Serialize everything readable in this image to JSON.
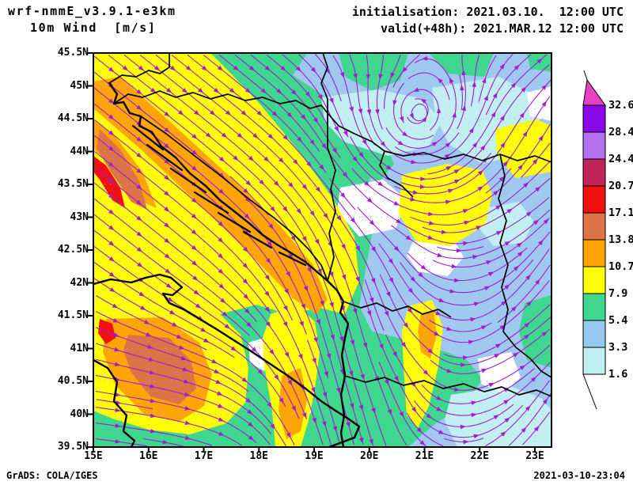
{
  "header": {
    "model_title": "wrf-nmmE_v3.9.1-e3km",
    "variable_title": "10m Wind  [m/s]",
    "initialisation": "initialisation: 2021.03.10.  12:00 UTC",
    "valid": "valid(+48h): 2021.MAR.12 12:00 UTC"
  },
  "map": {
    "lat_labels": [
      "45.5N",
      "45N",
      "44.5N",
      "44N",
      "43.5N",
      "43N",
      "42.5N",
      "42N",
      "41.5N",
      "41N",
      "40.5N",
      "40N",
      "39.5N"
    ],
    "lon_labels": [
      "15E",
      "16E",
      "17E",
      "18E",
      "19E",
      "20E",
      "21E",
      "22E",
      "23E"
    ]
  },
  "colorbar": {
    "values": [
      "32.6",
      "28.4",
      "24.4",
      "20.7",
      "17.1",
      "13.8",
      "10.7",
      "7.9",
      "5.4",
      "3.3",
      "1.6"
    ],
    "tip_color": "#E83FC8",
    "segment_colors": [
      "#8A07E8",
      "#B570F0",
      "#C02458",
      "#F01010",
      "#DE7248",
      "#FFA400",
      "#FFFF00",
      "#3FD68F",
      "#96C8F0",
      "#BFEFF0"
    ]
  },
  "palette": {
    "base_blue": "#9FC9F0",
    "green": "#3FD68F",
    "cyan": "#C2EFF2",
    "yellow": "#FFFF00",
    "orange": "#FFA400",
    "salmon": "#DE7248",
    "red": "#F01010",
    "stream": "#A01ECE",
    "grid": "#A8B4B4"
  },
  "footer": {
    "left": "GrADS: COLA/IGES",
    "right": "2021-03-10-23:04"
  }
}
